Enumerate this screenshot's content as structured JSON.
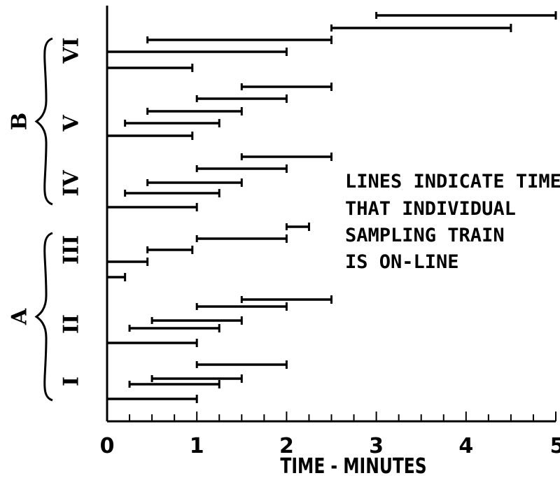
{
  "chart_data": {
    "type": "bar",
    "subtype": "timeline-intervals",
    "title": "",
    "xlabel": "TIME - MINUTES",
    "ylabel": "",
    "xlim": [
      0,
      5
    ],
    "x_ticks": [
      0,
      1,
      2,
      3,
      4,
      5
    ],
    "x_tick_labels": [
      "0",
      "1",
      "2",
      "3",
      "4",
      "5"
    ],
    "minor_tick_step": 0.25,
    "grid": false,
    "legend": "none",
    "annotation": [
      "LINES INDICATE TIME",
      "THAT INDIVIDUAL",
      "SAMPLING TRAIN",
      "IS ON-LINE"
    ],
    "groups": [
      {
        "name": "A",
        "runs": [
          "I",
          "II",
          "III"
        ]
      },
      {
        "name": "B",
        "runs": [
          "IV",
          "V",
          "VI"
        ]
      }
    ],
    "runs": [
      {
        "name": "I",
        "intervals": [
          [
            0,
            1
          ],
          [
            0.25,
            1.25
          ],
          [
            0.5,
            1.5
          ],
          [
            1,
            2
          ]
        ]
      },
      {
        "name": "II",
        "intervals": [
          [
            0,
            1
          ],
          [
            0.25,
            1.25
          ],
          [
            0.5,
            1.5
          ],
          [
            1,
            2
          ],
          [
            1.5,
            2.5
          ]
        ]
      },
      {
        "name": "III",
        "intervals": [
          [
            0,
            0.2
          ],
          [
            0,
            0.45
          ],
          [
            0.45,
            0.95
          ],
          [
            1,
            2
          ],
          [
            2,
            2.25
          ]
        ]
      },
      {
        "name": "IV",
        "intervals": [
          [
            0,
            1
          ],
          [
            0.2,
            1.25
          ],
          [
            0.45,
            1.5
          ],
          [
            1,
            2
          ],
          [
            1.5,
            2.5
          ]
        ]
      },
      {
        "name": "V",
        "intervals": [
          [
            0,
            0.95
          ],
          [
            0.2,
            1.25
          ],
          [
            0.45,
            1.5
          ],
          [
            1,
            2
          ],
          [
            1.5,
            2.5
          ]
        ]
      },
      {
        "name": "VI",
        "intervals": [
          [
            0,
            0.95
          ],
          [
            0,
            2
          ],
          [
            0.45,
            2.5
          ],
          [
            2.5,
            4.5
          ],
          [
            3,
            5
          ]
        ]
      }
    ]
  }
}
